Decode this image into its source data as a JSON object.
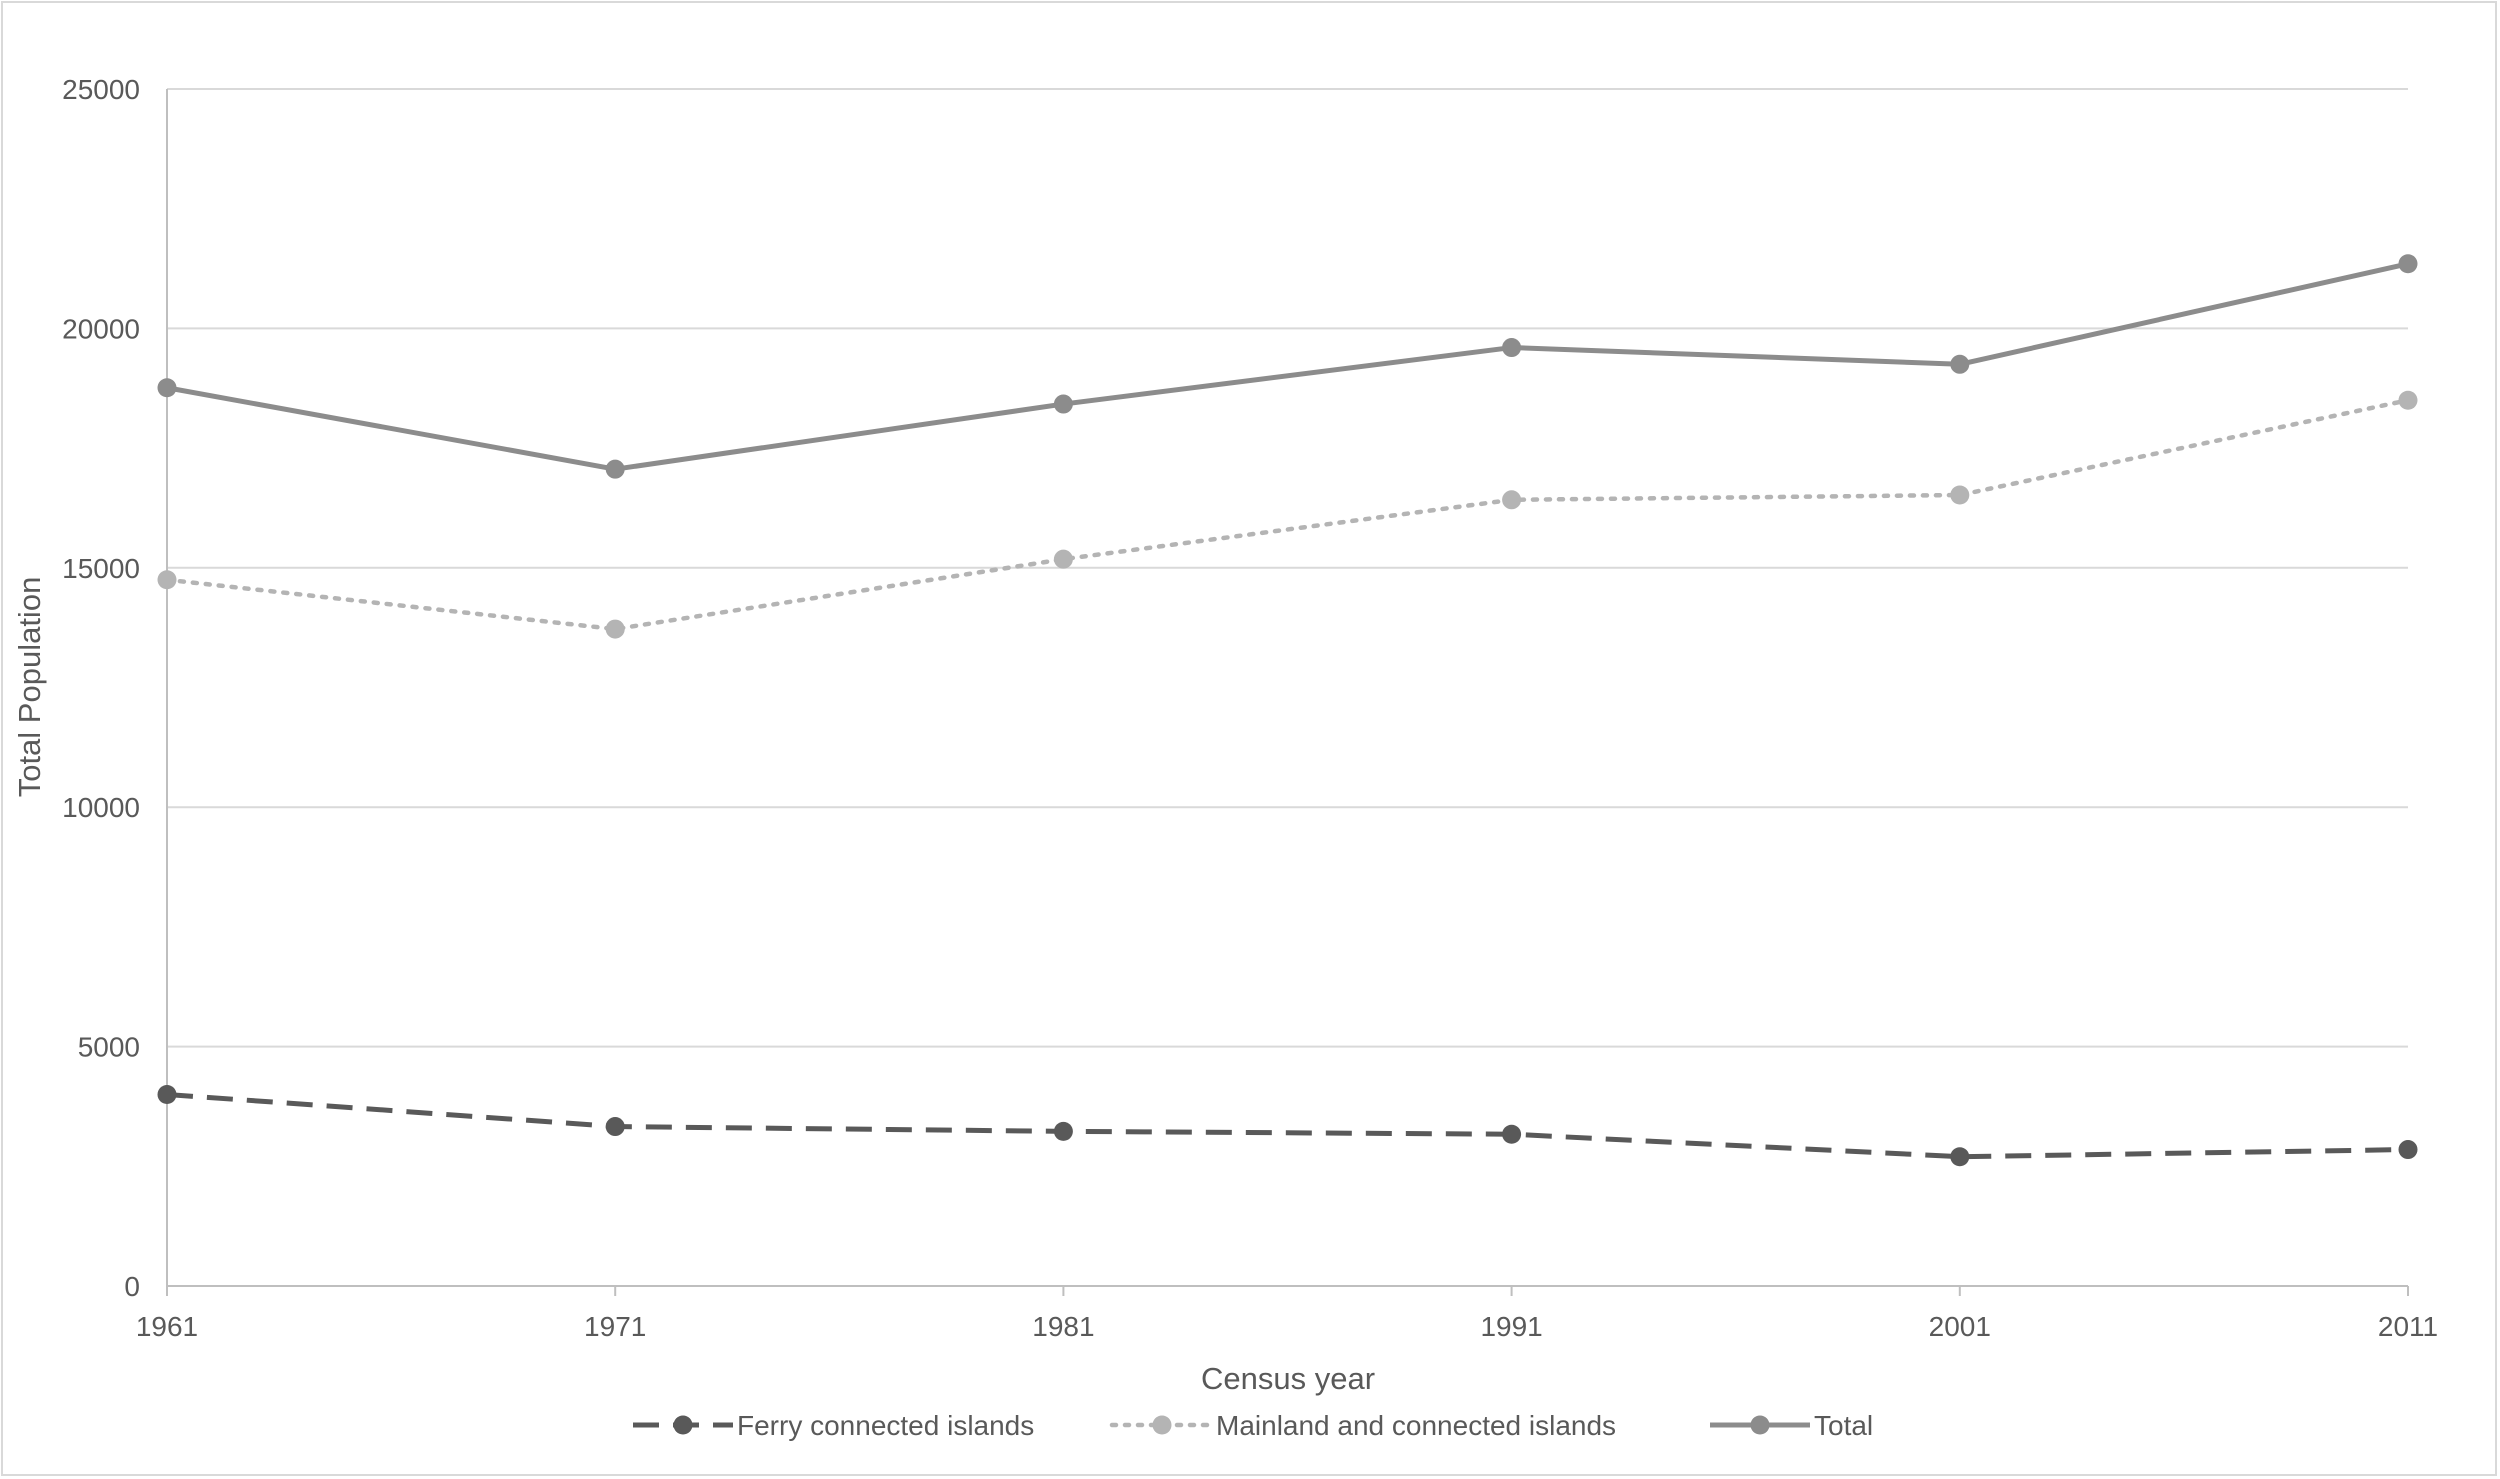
{
  "chart_data": {
    "type": "line",
    "title": "",
    "xlabel": "Census year",
    "ylabel": "Total Population",
    "categories": [
      "1961",
      "1971",
      "1981",
      "1991",
      "2001",
      "2011"
    ],
    "ylim": [
      0,
      25000
    ],
    "yticks": [
      0,
      5000,
      10000,
      15000,
      20000,
      25000
    ],
    "grid": "horizontal",
    "legend_position": "bottom",
    "series": [
      {
        "name": "Ferry connected islands",
        "values": [
          4000,
          3330,
          3230,
          3170,
          2700,
          2850
        ],
        "color": "#595959",
        "style": "dashed"
      },
      {
        "name": "Mainland and connected islands",
        "values": [
          14750,
          13720,
          15180,
          16420,
          16520,
          18500
        ],
        "color": "#b4b4b4",
        "style": "dotted"
      },
      {
        "name": "Total",
        "values": [
          18760,
          17060,
          18420,
          19600,
          19250,
          21350
        ],
        "color": "#8c8c8c",
        "style": "solid"
      }
    ]
  }
}
